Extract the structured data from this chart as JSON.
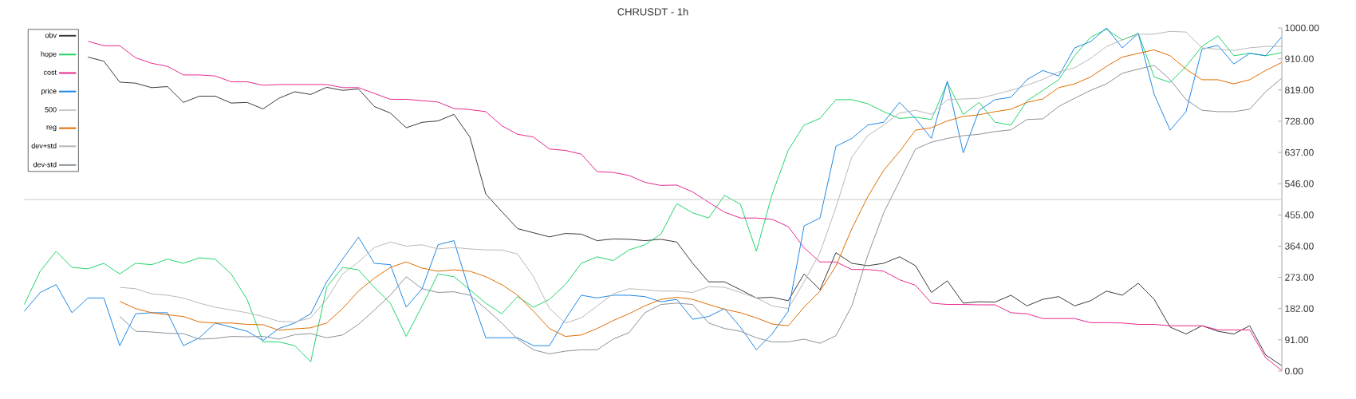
{
  "chart_data": {
    "type": "line",
    "title": "CHRUSDT - 1h",
    "categories": [
      null,
      null,
      null,
      null,
      null,
      null,
      null,
      null,
      null,
      null,
      null,
      null,
      null,
      null,
      null,
      null,
      null,
      null,
      null,
      null,
      null,
      null,
      null,
      null,
      null,
      null,
      null,
      null,
      null,
      null,
      null,
      null,
      null,
      null,
      null,
      null,
      null,
      null,
      null,
      null,
      null,
      null,
      null,
      null,
      null,
      null,
      null,
      null,
      null,
      null,
      null,
      null,
      null,
      null,
      null,
      null,
      null,
      null,
      null,
      null,
      null,
      null,
      null,
      null,
      null,
      null,
      null,
      null,
      null,
      null,
      null,
      null,
      null,
      null,
      null,
      null,
      null,
      null,
      null,
      null
    ],
    "ylim": [
      0,
      1000
    ],
    "yticks": [
      {
        "value": 0,
        "label": "0.00"
      },
      {
        "value": 91,
        "label": "91.00"
      },
      {
        "value": 182,
        "label": "182.00"
      },
      {
        "value": 273,
        "label": "273.00"
      },
      {
        "value": 364,
        "label": "364.00"
      },
      {
        "value": 455,
        "label": "455.00"
      },
      {
        "value": 546,
        "label": "546.00"
      },
      {
        "value": 637,
        "label": "637.00"
      },
      {
        "value": 728,
        "label": "728.00"
      },
      {
        "value": 819,
        "label": "819.00"
      },
      {
        "value": 910,
        "label": "910.00"
      },
      {
        "value": 1000,
        "label": "1000.00"
      }
    ],
    "tick_labels": "y",
    "legend": "top left",
    "series": [
      {
        "name": "obv",
        "color": "#3a3a3a",
        "values": [
          null,
          null,
          null,
          null,
          915,
          903,
          842,
          839,
          826,
          829,
          783,
          801,
          801,
          781,
          783,
          764,
          795,
          814,
          806,
          827,
          818,
          822,
          771,
          752,
          709,
          725,
          729,
          748,
          682,
          516,
          465,
          415,
          403,
          391,
          401,
          399,
          380,
          385,
          384,
          380,
          384,
          376,
          314,
          260,
          260,
          237,
          213,
          215,
          205,
          283,
          237,
          345,
          314,
          307,
          314,
          333,
          307,
          229,
          263,
          198,
          202,
          201,
          221,
          190,
          209,
          217,
          190,
          205,
          233,
          221,
          256,
          209,
          128,
          108,
          132,
          116,
          108,
          132,
          47,
          16
        ]
      },
      {
        "name": "hope",
        "color": "#21d46b",
        "values": [
          194,
          291,
          349,
          302,
          298,
          314,
          283,
          314,
          310,
          326,
          314,
          330,
          326,
          283,
          209,
          85,
          85,
          74,
          27,
          244,
          302,
          295,
          244,
          198,
          101,
          190,
          283,
          275,
          237,
          198,
          167,
          217,
          186,
          209,
          252,
          314,
          333,
          322,
          353,
          368,
          399,
          488,
          461,
          446,
          512,
          486,
          349,
          516,
          643,
          717,
          736,
          791,
          791,
          779,
          756,
          736,
          740,
          733,
          841,
          748,
          783,
          725,
          717,
          787,
          818,
          849,
          919,
          973,
          996,
          965,
          984,
          857,
          841,
          888,
          946,
          977,
          919,
          926,
          919,
          928
        ]
      },
      {
        "name": "cost",
        "color": "#e8288f",
        "values": [
          null,
          null,
          null,
          null,
          961,
          948,
          948,
          913,
          897,
          888,
          863,
          863,
          860,
          843,
          843,
          833,
          835,
          835,
          835,
          835,
          826,
          826,
          809,
          792,
          792,
          788,
          784,
          765,
          762,
          756,
          715,
          690,
          682,
          647,
          643,
          632,
          581,
          579,
          570,
          550,
          541,
          542,
          522,
          492,
          463,
          446,
          446,
          442,
          421,
          359,
          318,
          318,
          296,
          296,
          291,
          266,
          250,
          198,
          194,
          194,
          193,
          193,
          170,
          167,
          153,
          153,
          153,
          141,
          141,
          140,
          136,
          136,
          132,
          132,
          132,
          120,
          120,
          120,
          39,
          2
        ]
      },
      {
        "name": "price",
        "color": "#1e88e5",
        "values": [
          174,
          229,
          252,
          170,
          213,
          213,
          74,
          167,
          170,
          170,
          74,
          97,
          140,
          128,
          116,
          89,
          124,
          140,
          167,
          260,
          326,
          390,
          314,
          310,
          186,
          240,
          368,
          380,
          229,
          97,
          97,
          97,
          74,
          74,
          151,
          221,
          213,
          221,
          221,
          217,
          202,
          209,
          151,
          159,
          182,
          128,
          62,
          109,
          174,
          423,
          446,
          655,
          678,
          717,
          725,
          783,
          736,
          678,
          845,
          636,
          760,
          791,
          798,
          849,
          876,
          860,
          942,
          960,
          1000,
          942,
          984,
          806,
          702,
          756,
          938,
          949,
          895,
          926,
          919,
          973
        ]
      },
      {
        "name": "500",
        "color": "#c8c8c8",
        "values": [
          500,
          500,
          500,
          500,
          500,
          500,
          500,
          500,
          500,
          500,
          500,
          500,
          500,
          500,
          500,
          500,
          500,
          500,
          500,
          500,
          500,
          500,
          500,
          500,
          500,
          500,
          500,
          500,
          500,
          500,
          500,
          500,
          500,
          500,
          500,
          500,
          500,
          500,
          500,
          500,
          500,
          500,
          500,
          500,
          500,
          500,
          500,
          500,
          500,
          500,
          500,
          500,
          500,
          500,
          500,
          500,
          500,
          500,
          500,
          500,
          500,
          500,
          500,
          500,
          500,
          500,
          500,
          500,
          500,
          500,
          500,
          500,
          500,
          500,
          500,
          500,
          500,
          500,
          500,
          500
        ]
      },
      {
        "name": "reg",
        "color": "#e06c00",
        "values": [
          null,
          null,
          null,
          null,
          null,
          null,
          203,
          182,
          170,
          164,
          159,
          143,
          140,
          140,
          136,
          135,
          119,
          123,
          126,
          140,
          182,
          233,
          271,
          302,
          318,
          300,
          291,
          295,
          291,
          275,
          252,
          221,
          174,
          124,
          101,
          105,
          124,
          147,
          167,
          190,
          209,
          215,
          209,
          194,
          180,
          170,
          155,
          137,
          132,
          186,
          233,
          306,
          415,
          508,
          585,
          640,
          702,
          709,
          729,
          742,
          747,
          756,
          763,
          783,
          793,
          826,
          837,
          857,
          888,
          915,
          926,
          936,
          919,
          880,
          849,
          849,
          837,
          849,
          876,
          899
        ]
      },
      {
        "name": "dev+std",
        "color": "#b8b8b8",
        "values": [
          null,
          null,
          null,
          null,
          null,
          null,
          244,
          240,
          225,
          221,
          213,
          198,
          186,
          178,
          170,
          159,
          145,
          143,
          155,
          209,
          283,
          318,
          360,
          376,
          364,
          368,
          356,
          360,
          356,
          353,
          353,
          341,
          275,
          182,
          140,
          155,
          190,
          225,
          240,
          237,
          233,
          233,
          229,
          246,
          244,
          229,
          213,
          190,
          182,
          260,
          345,
          477,
          624,
          686,
          717,
          752,
          760,
          748,
          791,
          793,
          795,
          806,
          818,
          833,
          850,
          872,
          884,
          911,
          946,
          965,
          981,
          982,
          990,
          988,
          942,
          938,
          934,
          942,
          946,
          946
        ]
      },
      {
        "name": "dev-std",
        "color": "#8a9299",
        "values": [
          null,
          null,
          null,
          null,
          null,
          null,
          159,
          116,
          114,
          110,
          109,
          93,
          95,
          101,
          100,
          101,
          93,
          106,
          109,
          97,
          105,
          136,
          178,
          221,
          275,
          240,
          229,
          231,
          221,
          182,
          140,
          93,
          62,
          50,
          58,
          62,
          62,
          93,
          112,
          170,
          194,
          198,
          194,
          140,
          124,
          116,
          97,
          85,
          85,
          93,
          81,
          103,
          190,
          337,
          461,
          554,
          647,
          667,
          678,
          686,
          690,
          698,
          703,
          733,
          735,
          771,
          795,
          818,
          837,
          868,
          880,
          891,
          849,
          791,
          760,
          756,
          756,
          763,
          814,
          853
        ]
      }
    ]
  }
}
